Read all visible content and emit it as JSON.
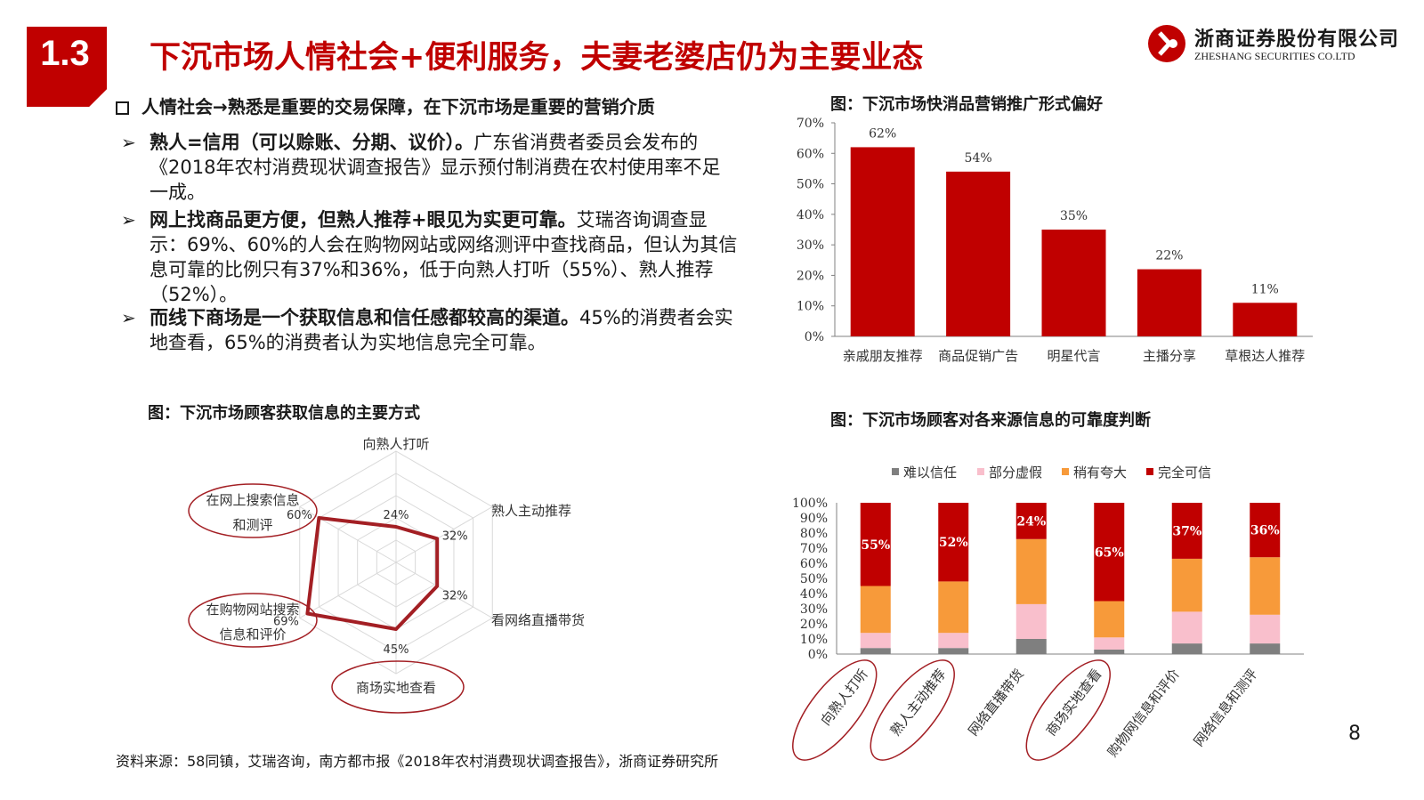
{
  "header": {
    "section_number": "1.3",
    "title": "下沉市场人情社会+便利服务，夫妻老婆店仍为主要业态",
    "logo_cn": "浙商证券股份有限公司",
    "logo_en": "ZHESHANG SECURITIES CO.LTD"
  },
  "body": {
    "bullet_heading": "人情社会→熟悉是重要的交易保障，在下沉市场是重要的营销介质",
    "points": [
      {
        "bold": "熟人=信用（可以赊账、分期、议价）。",
        "text": "广东省消费者委员会发布的《2018年农村消费现状调查报告》显示预付制消费在农村使用率不足一成。"
      },
      {
        "bold": "网上找商品更方便，但熟人推荐+眼见为实更可靠。",
        "text": "艾瑞咨询调查显示：69%、60%的人会在购物网站或网络测评中查找商品，但认为其信息可靠的比例只有37%和36%，低于向熟人打听（55%）、熟人推荐（52%）。"
      },
      {
        "bold": "而线下商场是一个获取信息和信任感都较高的渠道。",
        "text": "45%的消费者会实地查看，65%的消费者认为实地信息完全可靠。"
      }
    ]
  },
  "figures": {
    "bar_caption": "图：下沉市场快消品营销推广形式偏好",
    "radar_caption": "图：下沉市场顾客获取信息的主要方式",
    "stacked_caption": "图：下沉市场顾客对各来源信息的可靠度判断"
  },
  "chart_data": [
    {
      "type": "bar",
      "title": "图：下沉市场快消品营销推广形式偏好",
      "categories": [
        "亲戚朋友推荐",
        "商品促销广告",
        "明星代言",
        "主播分享",
        "草根达人推荐"
      ],
      "values": [
        62,
        54,
        35,
        22,
        11
      ],
      "data_labels": [
        "62%",
        "54%",
        "35%",
        "22%",
        "11%"
      ],
      "yticks": [
        "0%",
        "10%",
        "20%",
        "30%",
        "40%",
        "50%",
        "60%",
        "70%"
      ],
      "ylim": [
        0,
        70
      ],
      "color": "#c00000"
    },
    {
      "type": "radar",
      "title": "图：下沉市场顾客获取信息的主要方式",
      "categories": [
        "向熟人打听",
        "熟人主动推荐",
        "看网络直播带货",
        "商场实地查看",
        "在购物网站搜索信息和评价",
        "在网上搜索信息和测评"
      ],
      "category_labels": [
        "向熟人打听",
        "熟人主动推荐",
        "看网络直播带货",
        "商场实地查看",
        "在购物网站搜索\n信息和评价",
        "在网上搜索信息\n和测评"
      ],
      "values": [
        24,
        32,
        32,
        45,
        69,
        60
      ],
      "data_labels": [
        "24%",
        "32%",
        "32%",
        "45%",
        "69%",
        "60%"
      ],
      "rmax": 75,
      "highlighted": [
        "在网上搜索信息和测评",
        "在购物网站搜索信息和评价",
        "商场实地查看"
      ],
      "color": "#a31f24"
    },
    {
      "type": "bar",
      "stacked": true,
      "title": "图：下沉市场顾客对各来源信息的可靠度判断",
      "categories": [
        "向熟人打听",
        "熟人主动推荐",
        "网络直播带货",
        "商场实地查看",
        "购物网信息和评价",
        "网络信息和测评"
      ],
      "series": [
        {
          "name": "难以信任",
          "color": "#7f7f7f",
          "values": [
            4,
            4,
            10,
            3,
            7,
            7
          ]
        },
        {
          "name": "部分虚假",
          "color": "#f9bfcc",
          "values": [
            10,
            10,
            23,
            8,
            21,
            19
          ]
        },
        {
          "name": "稍有夸大",
          "color": "#f79a3a",
          "values": [
            31,
            34,
            43,
            24,
            35,
            38
          ]
        },
        {
          "name": "完全可信",
          "color": "#c00000",
          "values": [
            55,
            52,
            24,
            65,
            37,
            36
          ]
        }
      ],
      "data_labels": [
        "55%",
        "52%",
        "24%",
        "65%",
        "37%",
        "36%"
      ],
      "yticks": [
        "0%",
        "10%",
        "20%",
        "30%",
        "40%",
        "50%",
        "60%",
        "70%",
        "80%",
        "90%",
        "100%"
      ],
      "ylim": [
        0,
        100
      ],
      "highlighted": [
        "向熟人打听",
        "熟人主动推荐",
        "商场实地查看"
      ]
    }
  ],
  "footer": {
    "source": "资料来源：58同镇，艾瑞咨询，南方都市报《2018年农村消费现状调查报告》，浙商证券研究所",
    "page": "8"
  }
}
